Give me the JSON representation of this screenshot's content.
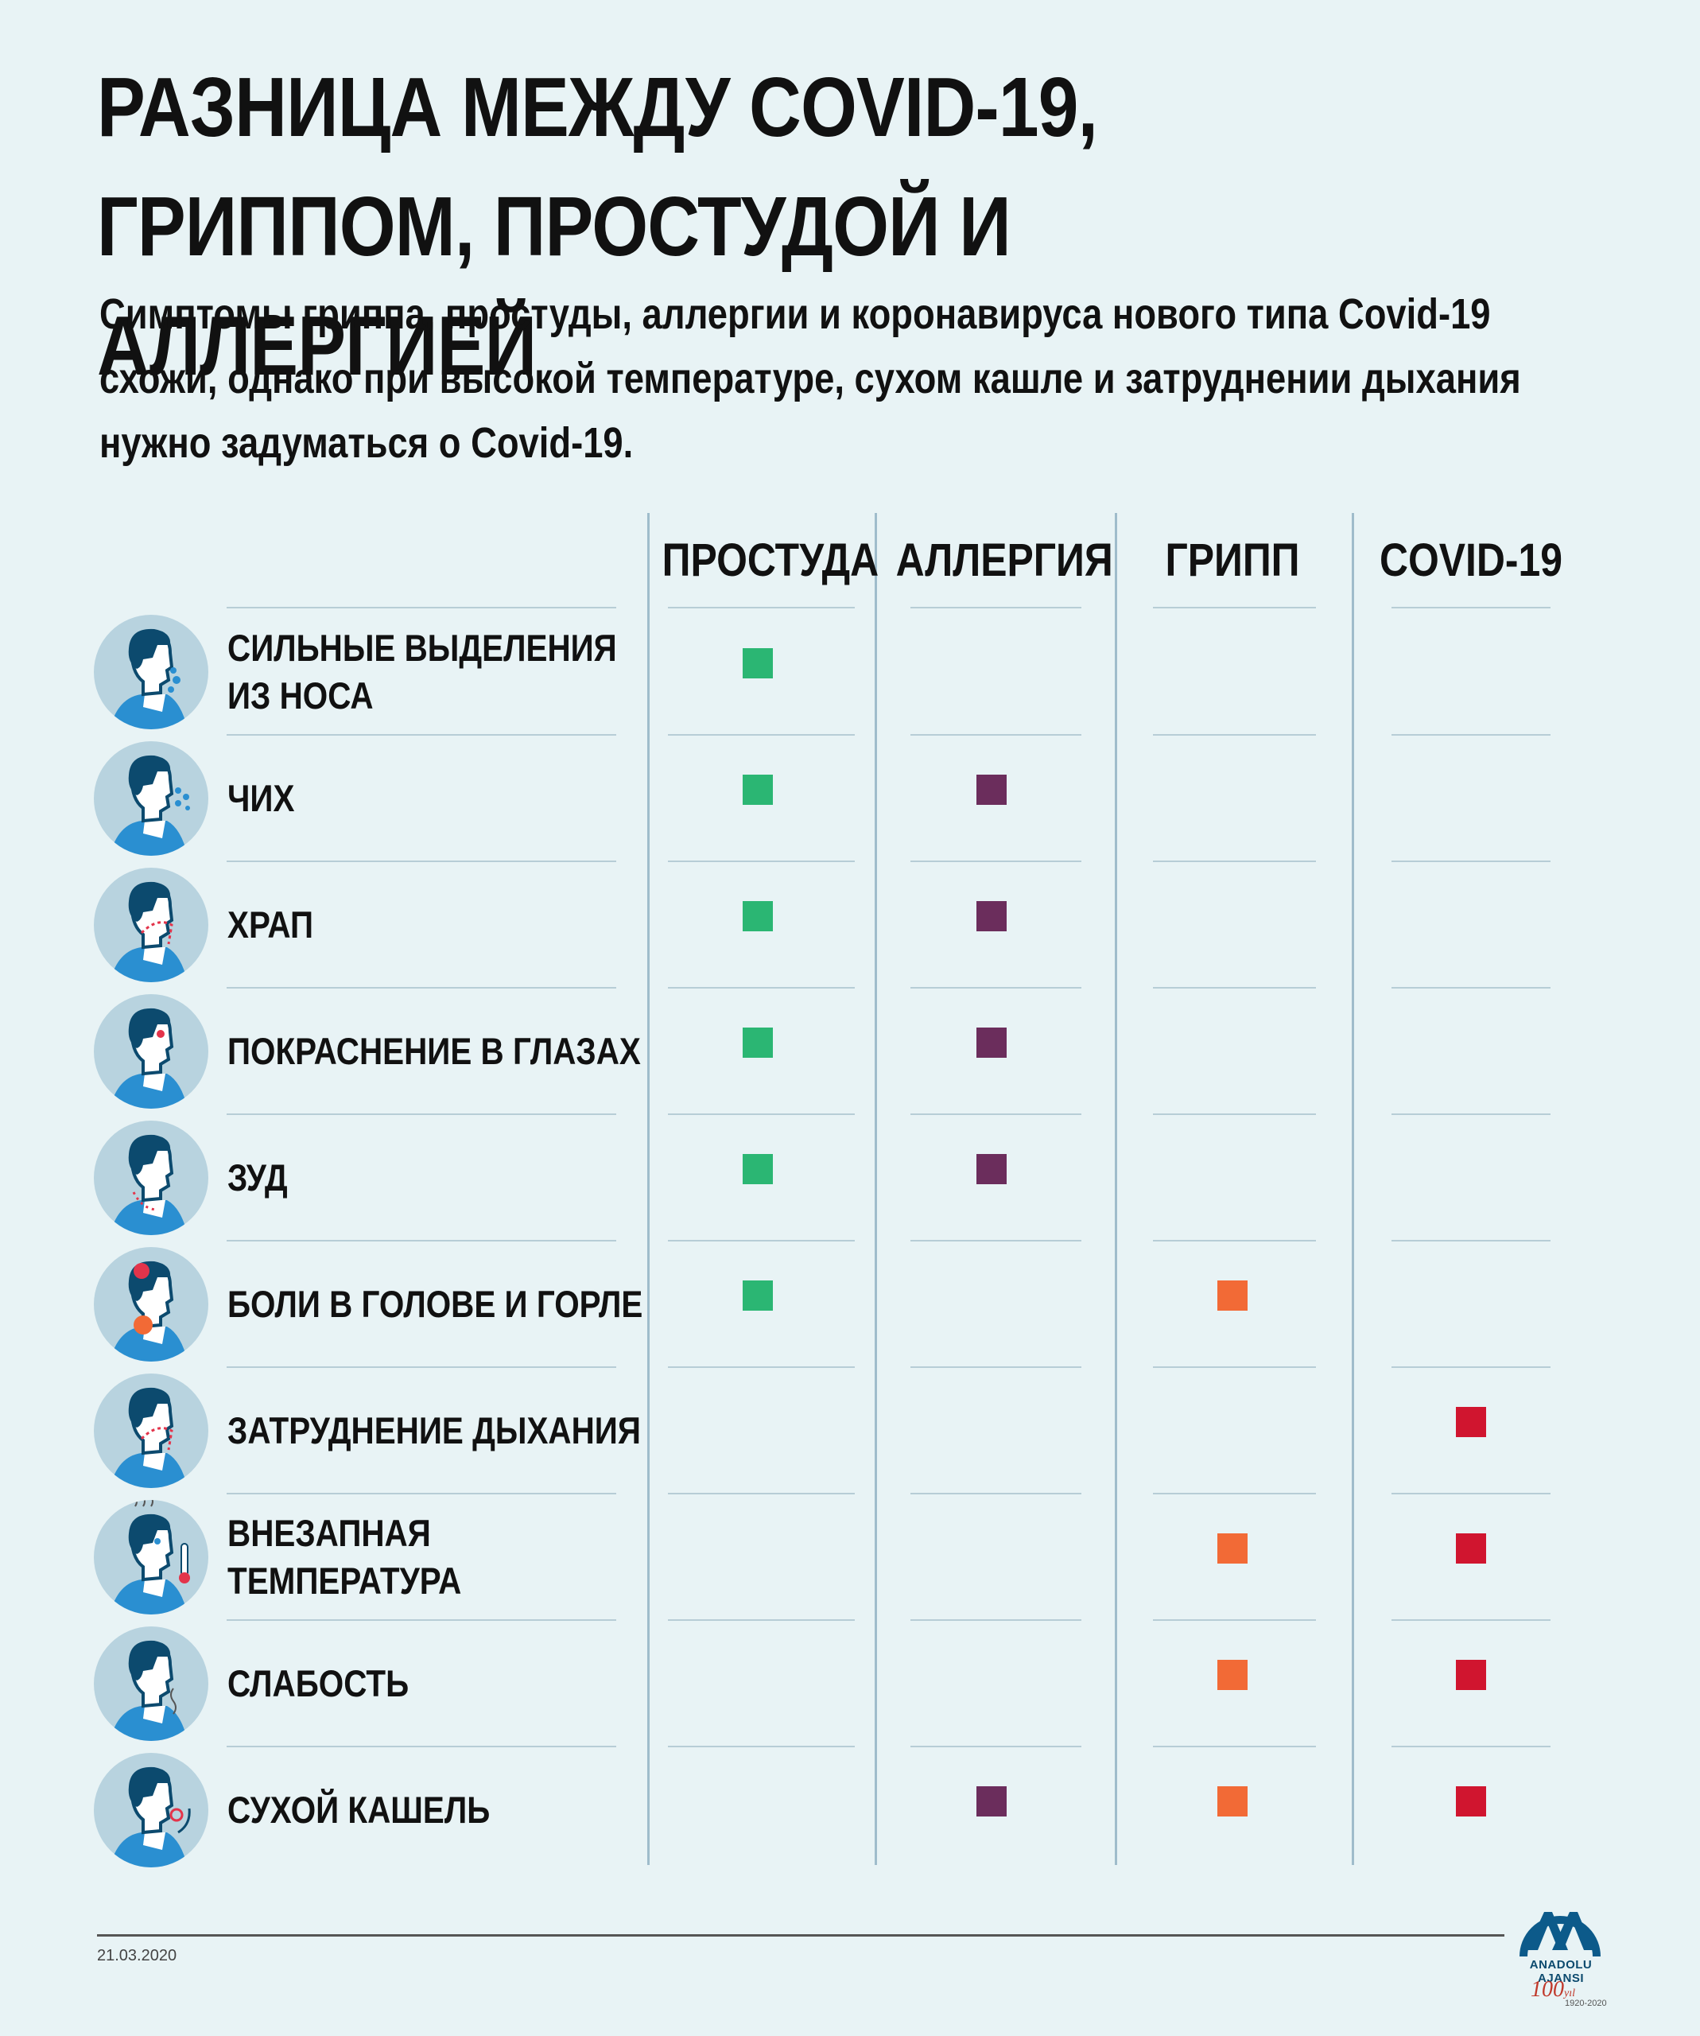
{
  "header": {
    "title_line1": "РАЗНИЦА МЕЖДУ COVID-19,",
    "title_line2": "ГРИППОМ, ПРОСТУДОЙ И АЛЛЕРГИЕЙ",
    "subtitle_line1": "Симптомы гриппа, простуды, аллергии и коронавируса нового типа Covid-19",
    "subtitle_line2": "схожи, однако при высокой температуре, сухом кашле и затруднении дыхания",
    "subtitle_line3": "нужно задуматься о Covid-19."
  },
  "columns": [
    {
      "label": "ПРОСТУДА",
      "color": "#2bb673"
    },
    {
      "label": "АЛЛЕРГИЯ",
      "color": "#6b2d5c"
    },
    {
      "label": "ГРИПП",
      "color": "#f26a36"
    },
    {
      "label": "COVID-19",
      "color": "#d0152f"
    }
  ],
  "rows": [
    {
      "label_line1": "СИЛЬНЫЕ ВЫДЕЛЕНИЯ",
      "label_line2": "ИЗ НОСА",
      "icon": "runny-nose-icon",
      "marks": [
        true,
        false,
        false,
        false
      ]
    },
    {
      "label_line1": "ЧИХ",
      "label_line2": "",
      "icon": "sneeze-icon",
      "marks": [
        true,
        true,
        false,
        false
      ]
    },
    {
      "label_line1": "ХРАП",
      "label_line2": "",
      "icon": "snore-icon",
      "marks": [
        true,
        true,
        false,
        false
      ]
    },
    {
      "label_line1": "ПОКРАСНЕНИЕ В ГЛАЗАХ",
      "label_line2": "",
      "icon": "red-eyes-icon",
      "marks": [
        true,
        true,
        false,
        false
      ]
    },
    {
      "label_line1": "ЗУД",
      "label_line2": "",
      "icon": "itch-icon",
      "marks": [
        true,
        true,
        false,
        false
      ]
    },
    {
      "label_line1": "БОЛИ В ГОЛОВЕ И ГОРЛЕ",
      "label_line2": "",
      "icon": "head-throat-pain-icon",
      "marks": [
        true,
        false,
        true,
        false
      ]
    },
    {
      "label_line1": "ЗАТРУДНЕНИЕ ДЫХАНИЯ",
      "label_line2": "",
      "icon": "breathing-difficulty-icon",
      "marks": [
        false,
        false,
        false,
        true
      ]
    },
    {
      "label_line1": "ВНЕЗАПНАЯ",
      "label_line2": "ТЕМПЕРАТУРА",
      "icon": "fever-icon",
      "marks": [
        false,
        false,
        true,
        true
      ]
    },
    {
      "label_line1": "СЛАБОСТЬ",
      "label_line2": "",
      "icon": "weakness-icon",
      "marks": [
        false,
        false,
        true,
        true
      ]
    },
    {
      "label_line1": "СУХОЙ КАШЕЛЬ",
      "label_line2": "",
      "icon": "dry-cough-icon",
      "marks": [
        false,
        true,
        true,
        true
      ]
    }
  ],
  "footer": {
    "date": "21.03.2020",
    "logo_text": "ANADOLU AJANSI",
    "anniversary": "100",
    "anniversary_suffix": "yıl",
    "anniversary_years": "1920-2020"
  }
}
